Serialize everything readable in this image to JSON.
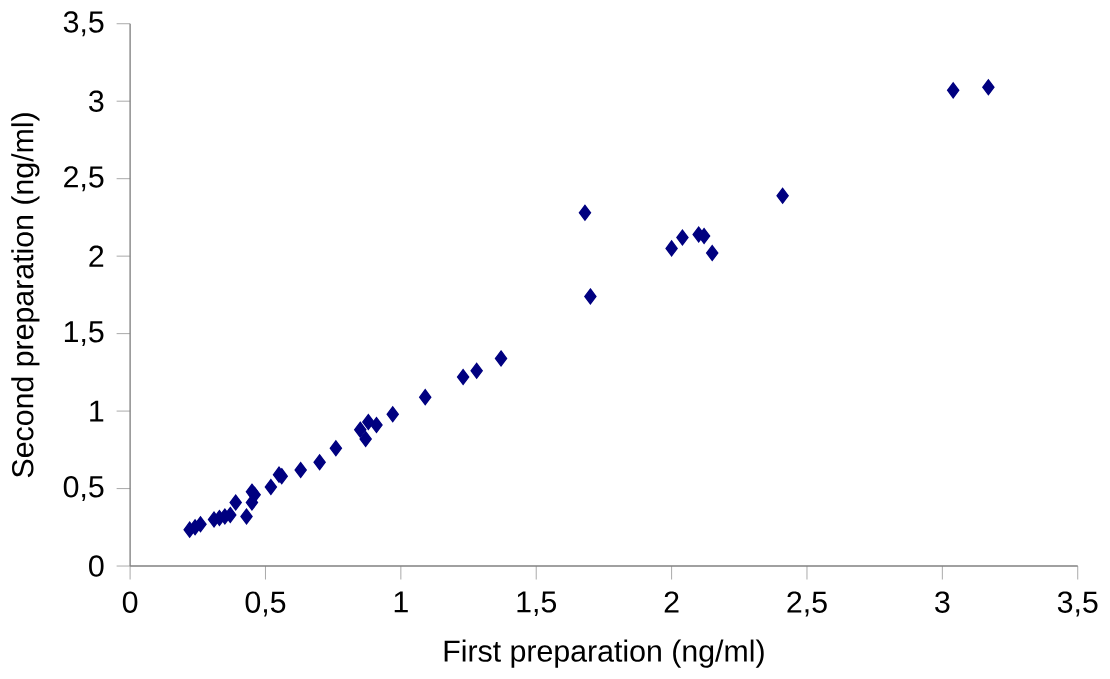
{
  "chart_data": {
    "type": "scatter",
    "xlabel": "First preparation (ng/ml)",
    "ylabel": "Second preparation (ng/ml)",
    "x": [
      0.22,
      0.24,
      0.26,
      0.31,
      0.33,
      0.35,
      0.37,
      0.39,
      0.43,
      0.45,
      0.45,
      0.46,
      0.52,
      0.55,
      0.56,
      0.63,
      0.7,
      0.76,
      0.85,
      0.87,
      0.88,
      0.91,
      0.97,
      1.09,
      1.23,
      1.28,
      1.37,
      1.68,
      1.7,
      2.0,
      2.04,
      2.1,
      2.12,
      2.15,
      2.41,
      3.04,
      3.17
    ],
    "values": [
      0.235,
      0.25,
      0.27,
      0.3,
      0.31,
      0.32,
      0.33,
      0.41,
      0.32,
      0.48,
      0.41,
      0.46,
      0.51,
      0.59,
      0.58,
      0.62,
      0.67,
      0.76,
      0.88,
      0.82,
      0.93,
      0.91,
      0.98,
      1.09,
      1.22,
      1.26,
      1.34,
      2.28,
      1.74,
      2.05,
      2.12,
      2.14,
      2.13,
      2.02,
      2.39,
      3.07,
      3.09
    ],
    "color": "#000080",
    "marker": "diamond",
    "xlim": [
      0,
      3.5
    ],
    "ylim": [
      0,
      3.5
    ],
    "xticks": [
      0,
      {
        "value": 0.5,
        "label": "0,5"
      },
      1,
      {
        "value": 1.5,
        "label": "1,5"
      },
      2,
      {
        "value": 2.5,
        "label": "2,5"
      },
      3,
      {
        "value": 3.5,
        "label": "3,5"
      }
    ],
    "yticks": [
      0,
      {
        "value": 0.5,
        "label": "0,5"
      },
      1,
      {
        "value": 1.5,
        "label": "1,5"
      },
      2,
      {
        "value": 2.5,
        "label": "2,5"
      },
      3,
      {
        "value": 3.5,
        "label": "3,5"
      }
    ]
  }
}
